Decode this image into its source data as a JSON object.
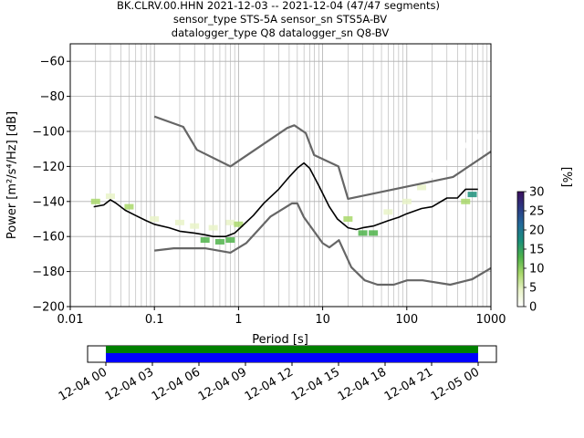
{
  "figure": {
    "title_lines": [
      "BK.CLRV.00.HHN   2021-12-03 -- 2021-12-04  (47/47 segments)",
      "sensor_type STS-5A sensor_sn STS5A-BV",
      "datalogger_type Q8 datalogger_sn Q8-BV"
    ]
  },
  "chart_data": [
    {
      "type": "heatmap",
      "title": "BK.CLRV.00.HHN   2021-12-03 -- 2021-12-04  (47/47 segments)",
      "xlabel": "Period [s]",
      "ylabel": "Power [m²/s⁴/Hz] [dB]",
      "xscale": "log",
      "xlim": [
        0.01,
        1000
      ],
      "ylim": [
        -200,
        -50
      ],
      "xticks": [
        0.01,
        0.1,
        1,
        10,
        100,
        1000
      ],
      "xtick_labels": [
        "0.01",
        "0.1",
        "1",
        "10",
        "100",
        "1000"
      ],
      "yticks": [
        -200,
        -180,
        -160,
        -140,
        -120,
        -100,
        -80,
        -60
      ],
      "ytick_labels": [
        "−200",
        "−180",
        "−160",
        "−140",
        "−120",
        "−100",
        "−80",
        "−60"
      ],
      "grid": true,
      "colorbar": {
        "label": "[%]",
        "min": 0,
        "max": 30,
        "ticks": [
          0,
          5,
          10,
          15,
          20,
          25,
          30
        ],
        "tick_labels": [
          "0",
          "5",
          "10",
          "15",
          "20",
          "25",
          "30"
        ],
        "colormap": [
          "#ffffff",
          "#e9f3c8",
          "#a9d86b",
          "#4fb34a",
          "#1b8f7a",
          "#236a9a",
          "#2c3a83",
          "#3b0f5e"
        ]
      },
      "series": [
        {
          "name": "mode",
          "color": "#000000",
          "x": [
            0.019,
            0.025,
            0.03,
            0.035,
            0.045,
            0.06,
            0.08,
            0.1,
            0.15,
            0.2,
            0.3,
            0.4,
            0.5,
            0.7,
            0.9,
            1.0,
            1.5,
            2.0,
            3.0,
            4.0,
            5.0,
            6.0,
            7.0,
            9.0,
            12.0,
            15.0,
            20.0,
            25.0,
            30.0,
            40.0,
            60.0,
            80.0,
            100.0,
            150.0,
            200.0,
            300.0,
            400.0,
            500.0,
            700.0
          ],
          "y": [
            -143,
            -142,
            -139,
            -141,
            -145,
            -148,
            -151,
            -153,
            -155,
            -157,
            -158,
            -159,
            -160,
            -160,
            -158,
            -156,
            -148,
            -141,
            -133,
            -126,
            -121,
            -118,
            -121,
            -131,
            -143,
            -150,
            -155,
            -156,
            -155,
            -154,
            -151,
            -149,
            -147,
            -144,
            -143,
            -138,
            -138,
            -133,
            -133
          ]
        },
        {
          "name": "low noise model",
          "color": "#666666",
          "x": [
            0.1,
            0.17,
            0.4,
            0.8,
            1.24,
            2.4,
            4.3,
            5.0,
            6.0,
            10.0,
            12.0,
            15.6,
            21.9,
            31.6,
            45.0,
            70.0,
            101.0,
            154.0,
            328.0,
            600.0,
            1000.0
          ],
          "y": [
            -168,
            -166.7,
            -166.7,
            -169.2,
            -163.7,
            -148.6,
            -141.1,
            -141.1,
            -149.0,
            -163.8,
            -166.2,
            -162.1,
            -177.5,
            -185.0,
            -187.5,
            -187.5,
            -185.0,
            -185.0,
            -187.5,
            -184.4,
            -178.0
          ]
        },
        {
          "name": "high noise model",
          "color": "#666666",
          "x": [
            0.1,
            0.22,
            0.32,
            0.8,
            3.8,
            4.6,
            6.3,
            7.9,
            15.4,
            20.0,
            354.8,
            1000.0
          ],
          "y": [
            -91.5,
            -97.4,
            -110.5,
            -120.0,
            -98.0,
            -96.5,
            -101.0,
            -113.5,
            -120.0,
            -138.5,
            -126.0,
            -111.5
          ]
        }
      ],
      "density": [
        {
          "period": 0.02,
          "power": -140,
          "percent": 8
        },
        {
          "period": 0.03,
          "power": -137,
          "percent": 6
        },
        {
          "period": 0.05,
          "power": -143,
          "percent": 7
        },
        {
          "period": 0.1,
          "power": -150,
          "percent": 6
        },
        {
          "period": 0.2,
          "power": -152,
          "percent": 5
        },
        {
          "period": 0.3,
          "power": -154,
          "percent": 5
        },
        {
          "period": 0.5,
          "power": -155,
          "percent": 6
        },
        {
          "period": 0.8,
          "power": -152,
          "percent": 6
        },
        {
          "period": 1.0,
          "power": -153,
          "percent": 8
        },
        {
          "period": 0.4,
          "power": -162,
          "percent": 12
        },
        {
          "period": 0.6,
          "power": -163,
          "percent": 14
        },
        {
          "period": 0.8,
          "power": -162,
          "percent": 12
        },
        {
          "period": 20,
          "power": -150,
          "percent": 7
        },
        {
          "period": 30,
          "power": -158,
          "percent": 14
        },
        {
          "period": 40,
          "power": -158,
          "percent": 12
        },
        {
          "period": 60,
          "power": -146,
          "percent": 5
        },
        {
          "period": 100,
          "power": -140,
          "percent": 4
        },
        {
          "period": 150,
          "power": -132,
          "percent": 3
        },
        {
          "period": 200,
          "power": -125,
          "percent": 2
        },
        {
          "period": 300,
          "power": -118,
          "percent": 2
        },
        {
          "period": 500,
          "power": -108,
          "percent": 2
        },
        {
          "period": 700,
          "power": -103,
          "percent": 2
        },
        {
          "period": 500,
          "power": -140,
          "percent": 10
        },
        {
          "period": 600,
          "power": -136,
          "percent": 15
        }
      ]
    },
    {
      "type": "timeline",
      "xtick_labels": [
        "12-04 00",
        "12-04 03",
        "12-04 06",
        "12-04 09",
        "12-04 12",
        "12-04 15",
        "12-04 18",
        "12-04 21",
        "12-05 00"
      ],
      "coverage": [
        {
          "name": "available data",
          "color": "#008000",
          "start": "12-04 00",
          "end": "12-05 00"
        },
        {
          "name": "processed segments",
          "color": "#0000ff",
          "start": "12-04 00",
          "end": "12-05 00"
        }
      ]
    }
  ]
}
